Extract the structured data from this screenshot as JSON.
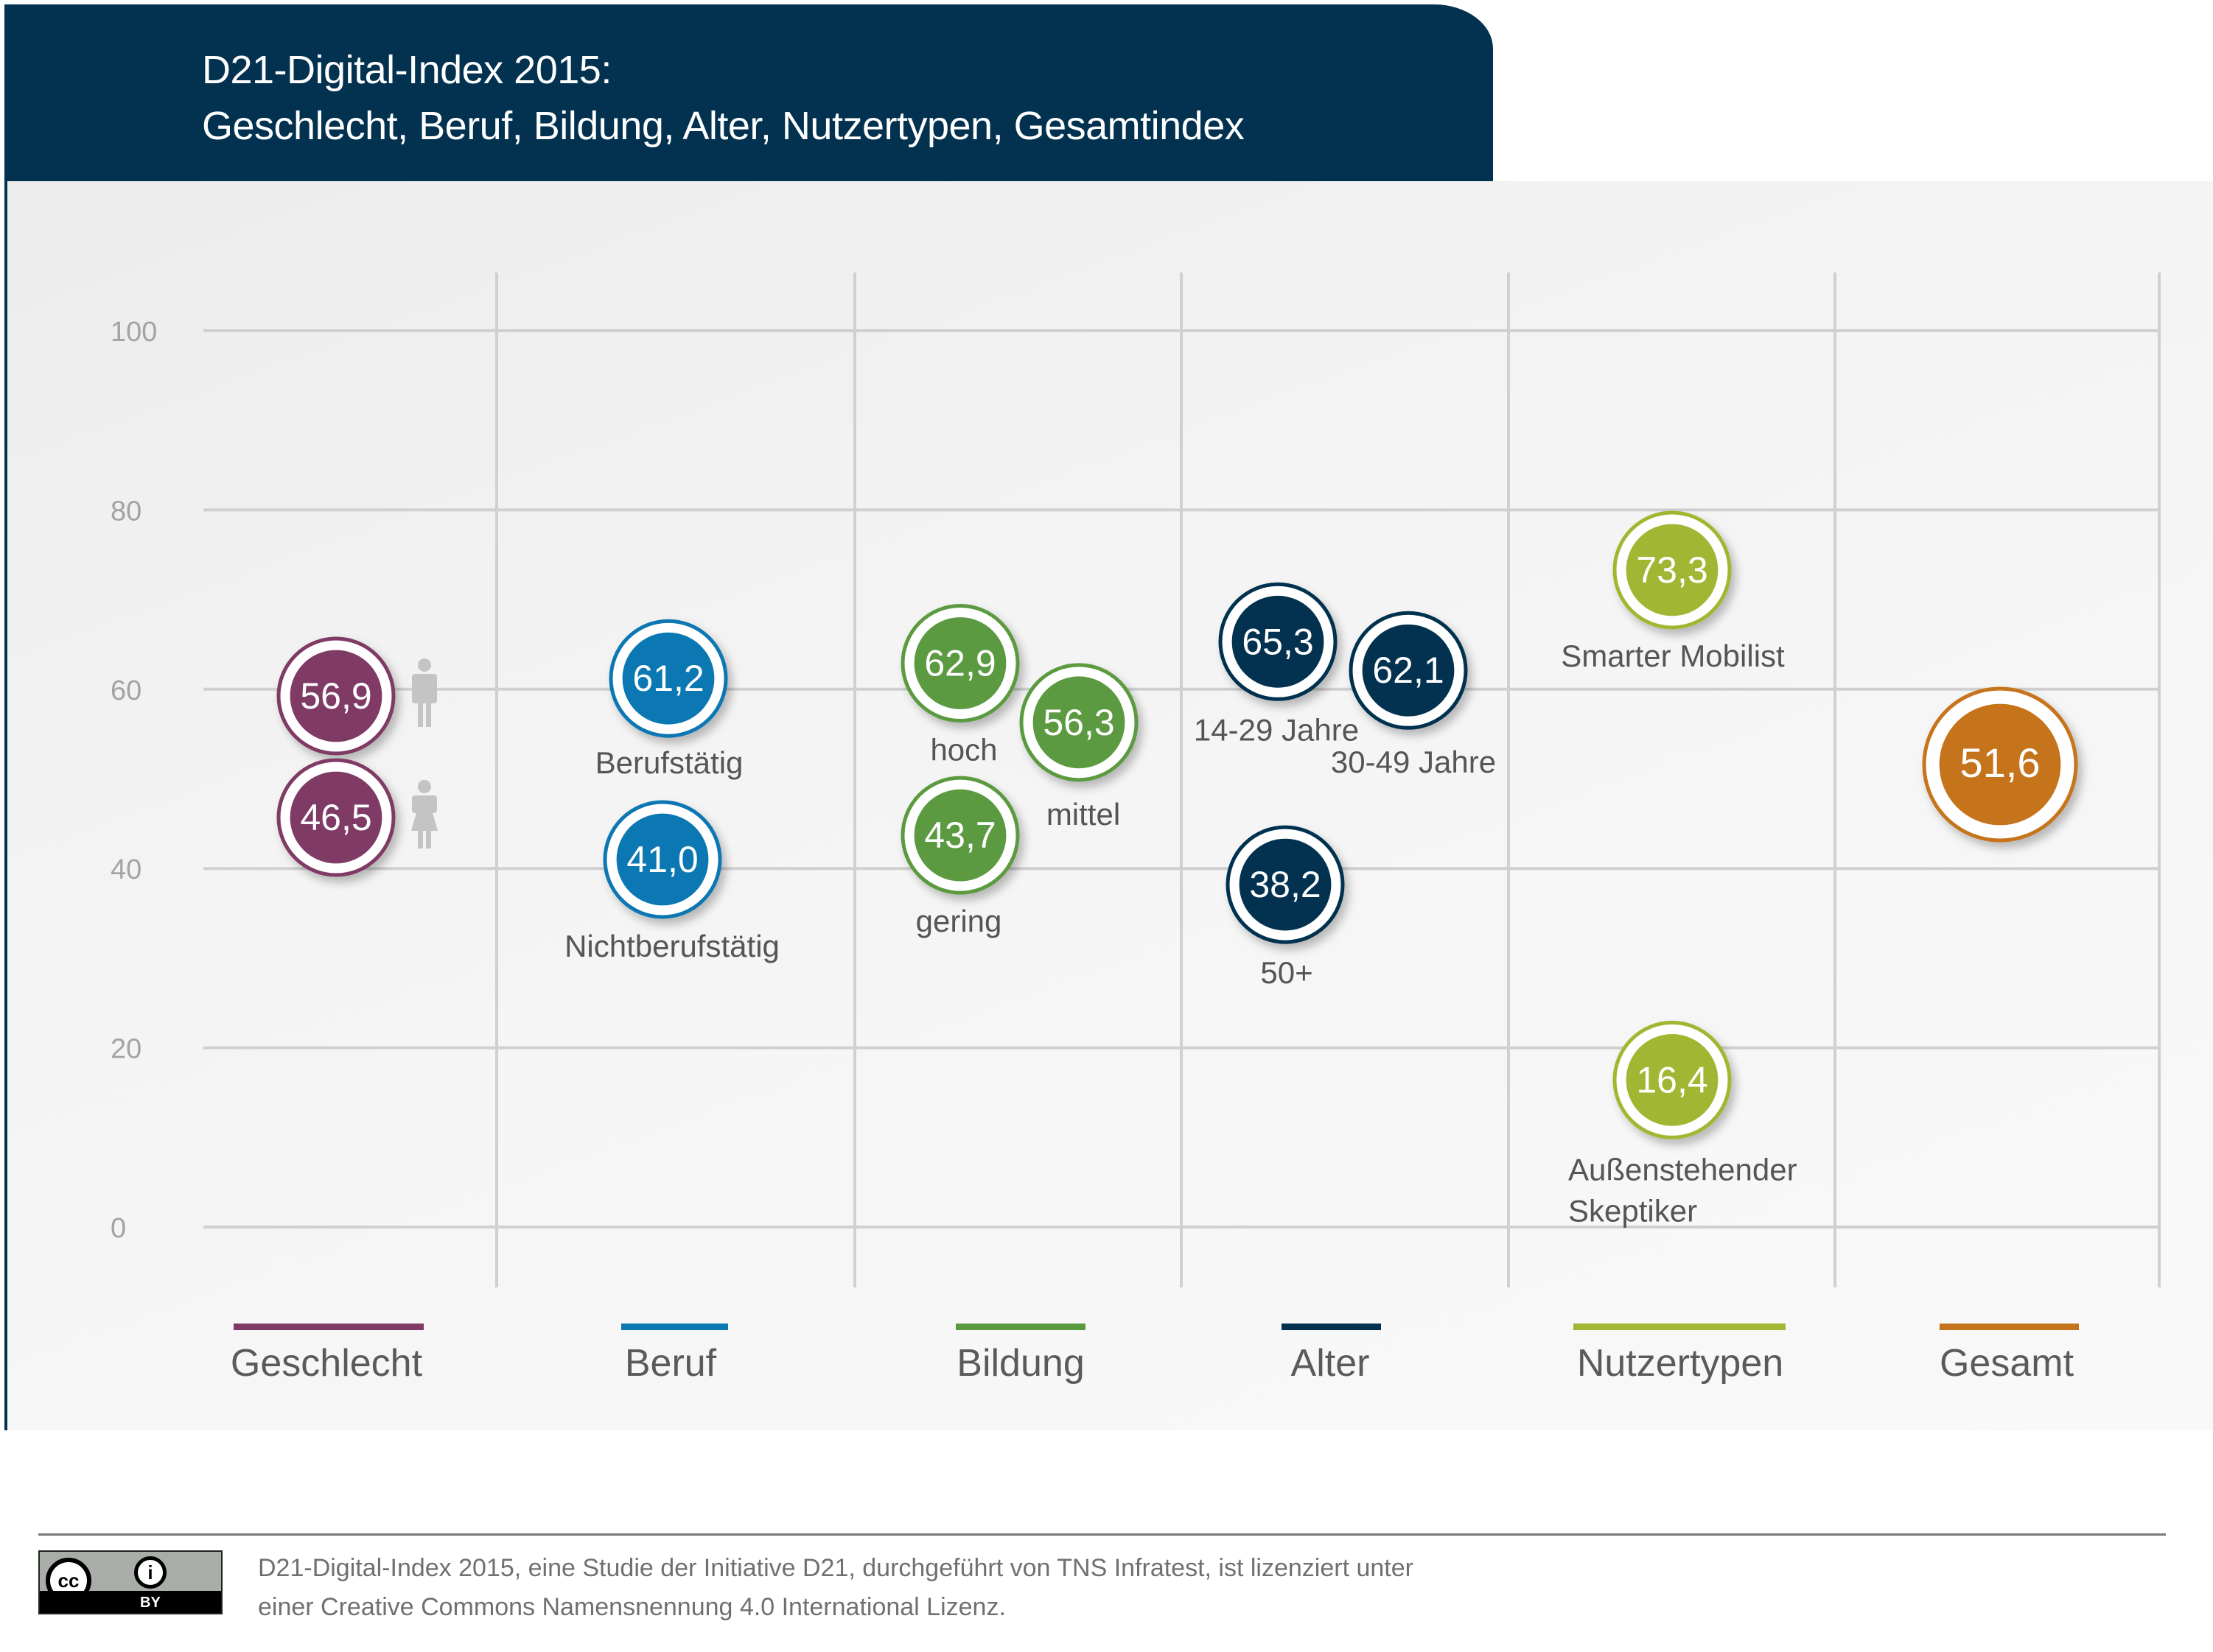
{
  "header": {
    "title_line1": "D21-Digital-Index 2015:",
    "title_line2": "Geschlecht, Beruf, Bildung, Alter, Nutzertypen, Gesamtindex"
  },
  "chart_data": {
    "type": "scatter",
    "title": "D21-Digital-Index 2015: Geschlecht, Beruf, Bildung, Alter, Nutzertypen, Gesamtindex",
    "xlabel": "",
    "ylabel": "",
    "ylim": [
      0,
      100
    ],
    "yticks": [
      0,
      20,
      40,
      60,
      80,
      100
    ],
    "grid": true,
    "legend_position": "bottom",
    "categories": [
      "Geschlecht",
      "Beruf",
      "Bildung",
      "Alter",
      "Nutzertypen",
      "Gesamt"
    ],
    "series": [
      {
        "name": "Geschlecht",
        "color": "#7f3a65",
        "points": [
          {
            "label": "männlich",
            "icon": "male-icon",
            "value": 56.9,
            "display": "56,9"
          },
          {
            "label": "weiblich",
            "icon": "female-icon",
            "value": 46.5,
            "display": "46,5"
          }
        ]
      },
      {
        "name": "Beruf",
        "color": "#0b77b3",
        "points": [
          {
            "label": "Berufstätig",
            "value": 61.2,
            "display": "61,2"
          },
          {
            "label": "Nichtberufstätig",
            "value": 41.0,
            "display": "41,0"
          }
        ]
      },
      {
        "name": "Bildung",
        "color": "#5b9a41",
        "points": [
          {
            "label": "hoch",
            "value": 62.9,
            "display": "62,9"
          },
          {
            "label": "mittel",
            "value": 56.3,
            "display": "56,3"
          },
          {
            "label": "gering",
            "value": 43.7,
            "display": "43,7"
          }
        ]
      },
      {
        "name": "Alter",
        "color": "#033250",
        "points": [
          {
            "label": "14-29 Jahre",
            "value": 65.3,
            "display": "65,3"
          },
          {
            "label": "30-49 Jahre",
            "value": 62.1,
            "display": "62,1"
          },
          {
            "label": "50+",
            "value": 38.2,
            "display": "38,2"
          }
        ]
      },
      {
        "name": "Nutzertypen",
        "color": "#a1b733",
        "points": [
          {
            "label": "Smarter Mobilist",
            "value": 73.3,
            "display": "73,3"
          },
          {
            "label": "Außenstehender Skeptiker",
            "value": 16.4,
            "display": "16,4"
          }
        ]
      },
      {
        "name": "Gesamt",
        "color": "#c6741b",
        "points": [
          {
            "label": "",
            "value": 51.6,
            "display": "51,6"
          }
        ]
      }
    ]
  },
  "footer": {
    "license_badge": {
      "cc": "cc",
      "by": "BY"
    },
    "line1": "D21-Digital-Index 2015, eine Studie der Initiative D21, durchgeführt von TNS Infratest, ist lizenziert unter",
    "line2": "einer Creative Commons Namensnennung 4.0 International Lizenz."
  }
}
